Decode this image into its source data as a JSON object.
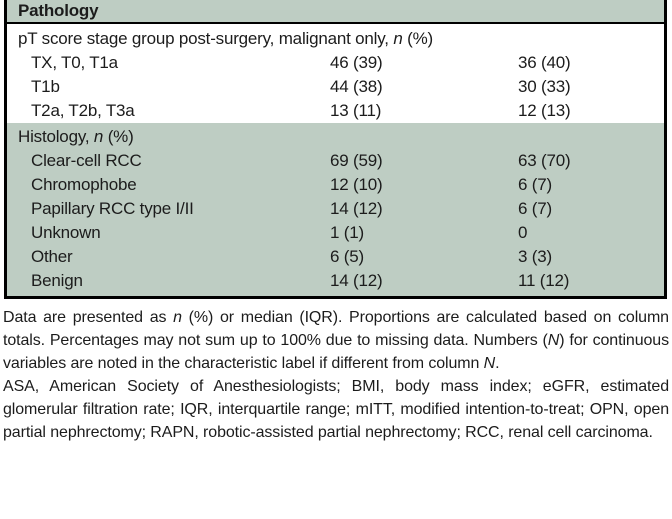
{
  "colors": {
    "section_shading_green": "#becdc3",
    "border_black": "#000000",
    "text": "#1c1c1c"
  },
  "table": {
    "header": "Pathology",
    "sections": [
      {
        "name": "pt-stage",
        "shaded": false,
        "title_segments": [
          {
            "t": "pT score stage group post-surgery, malignant only, "
          },
          {
            "t": "n",
            "i": true
          },
          {
            "t": " (%)"
          }
        ],
        "rows": [
          {
            "label": "TX, T0, T1a",
            "col1": "46 (39)",
            "col2": "36 (40)"
          },
          {
            "label": "T1b",
            "col1": "44 (38)",
            "col2": "30 (33)"
          },
          {
            "label": "T2a, T2b, T3a",
            "col1": "13 (11)",
            "col2": "12 (13)"
          }
        ]
      },
      {
        "name": "histology",
        "shaded": true,
        "title_segments": [
          {
            "t": "Histology, "
          },
          {
            "t": "n",
            "i": true
          },
          {
            "t": " (%)"
          }
        ],
        "rows": [
          {
            "label": "Clear-cell RCC",
            "col1": "69 (59)",
            "col2": "63 (70)"
          },
          {
            "label": "Chromophobe",
            "col1": "12 (10)",
            "col2": "6 (7)"
          },
          {
            "label": "Papillary RCC type I/II",
            "col1": "14 (12)",
            "col2": "6 (7)"
          },
          {
            "label": "Unknown",
            "col1": "1 (1)",
            "col2": "0"
          },
          {
            "label": "Other",
            "col1": "6 (5)",
            "col2": "3 (3)"
          },
          {
            "label": "Benign",
            "col1": "14 (12)",
            "col2": "11 (12)"
          }
        ]
      }
    ]
  },
  "footnotes": {
    "data_note_segments": [
      {
        "t": "Data are presented as "
      },
      {
        "t": "n",
        "i": true
      },
      {
        "t": " (%) or median (IQR). Proportions are calculated based on column totals. Percentages may not sum up to 100% due to missing data. Numbers ("
      },
      {
        "t": "N",
        "i": true
      },
      {
        "t": ") for continuous variables are noted in the characteristic label if different from column "
      },
      {
        "t": "N",
        "i": true
      },
      {
        "t": "."
      }
    ],
    "abbreviations": "ASA, American Society of Anesthesiologists; BMI, body mass index; eGFR, estimated glomerular filtration rate; IQR, interquartile range; mITT, modified intention-to-treat; OPN, open partial nephrectomy; RAPN, robotic-assisted partial nephrectomy; RCC, renal cell carcinoma."
  }
}
